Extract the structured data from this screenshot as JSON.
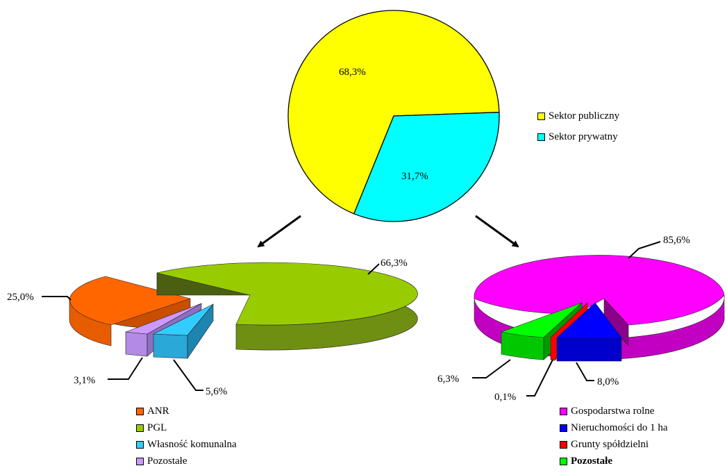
{
  "chart_data": [
    {
      "type": "pie",
      "categories": [
        "Sektor publiczny",
        "Sektor prywatny"
      ],
      "values": [
        68.3,
        31.7
      ],
      "labels": [
        "68,3%",
        "31,7%"
      ],
      "colors": [
        "#ffff00",
        "#00ffff"
      ],
      "legend": "right"
    },
    {
      "type": "pie",
      "categories": [
        "ANR",
        "PGL",
        "Własność komunalna",
        "Pozostałe"
      ],
      "values": [
        25.0,
        66.3,
        5.6,
        3.1
      ],
      "labels": [
        "25,0%",
        "66,3%",
        "5,6%",
        "3,1%"
      ],
      "colors": [
        "#ff6600",
        "#99cc00",
        "#33ccff",
        "#cc99ff"
      ],
      "legend": "bottom"
    },
    {
      "type": "pie",
      "categories": [
        "Gospodarstwa rolne",
        "Nieruchomości do 1 ha",
        "Grunty spółdzielni",
        "Pozostałe"
      ],
      "values": [
        85.6,
        8.0,
        0.1,
        6.3
      ],
      "labels": [
        "85,6%",
        "8,0%",
        "0,1%",
        "6,3%"
      ],
      "colors": [
        "#ff00ff",
        "#0000ff",
        "#ff0000",
        "#00ff00"
      ],
      "legend": "bottom"
    }
  ],
  "legends": {
    "top": [
      {
        "label": "Sektor publiczny",
        "color": "#ffff00"
      },
      {
        "label": "Sektor prywatny",
        "color": "#00ffff"
      }
    ],
    "left": [
      {
        "label": "ANR",
        "color": "#ff6600"
      },
      {
        "label": "PGL",
        "color": "#99cc00"
      },
      {
        "label": "Własność komunalna",
        "color": "#33ccff"
      },
      {
        "label": "Pozostałe",
        "color": "#cc99ff"
      }
    ],
    "right": [
      {
        "label": "Gospodarstwa rolne",
        "color": "#ff00ff"
      },
      {
        "label": "Nieruchomości do 1 ha",
        "color": "#0000ff"
      },
      {
        "label": "Grunty spółdzielni",
        "color": "#ff0000"
      },
      {
        "label": "Pozostałe",
        "color": "#00ff00"
      }
    ]
  }
}
